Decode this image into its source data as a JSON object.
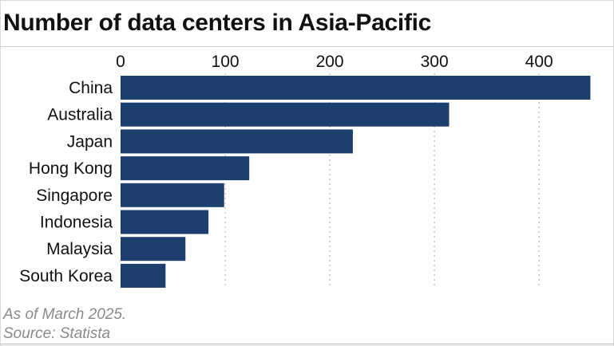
{
  "title": "Number of data centers in Asia-Pacific",
  "footnote": "As of March 2025.",
  "source": "Source: Statista",
  "colors": {
    "bar": "#1c3f6e",
    "grid": "#bdbdbd",
    "text": "#111111",
    "note": "#8a8a8a"
  },
  "chart_data": {
    "type": "bar",
    "orientation": "horizontal",
    "title": "Number of data centers in Asia-Pacific",
    "categories": [
      "China",
      "Australia",
      "Japan",
      "Hong Kong",
      "Singapore",
      "Indonesia",
      "Malaysia",
      "South Korea"
    ],
    "values": [
      449,
      314,
      222,
      123,
      99,
      84,
      62,
      43
    ],
    "xlabel": "",
    "ylabel": "",
    "xlim": [
      0,
      450
    ],
    "x_ticks": [
      0,
      100,
      200,
      300,
      400
    ],
    "x_axis_position": "top",
    "grid": true,
    "legend": "none"
  }
}
